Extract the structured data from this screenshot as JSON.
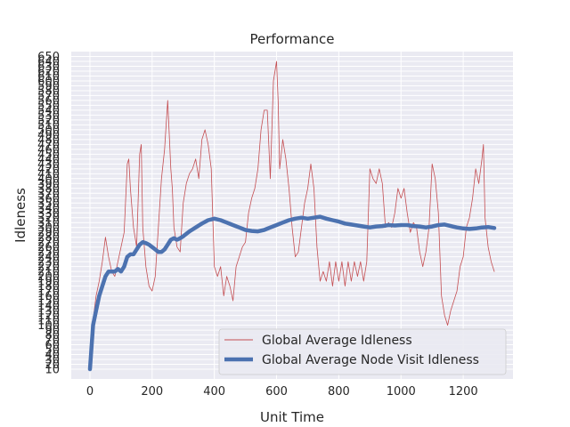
{
  "chart_data": {
    "type": "line",
    "title": "Performance",
    "xlabel": "Unit Time",
    "ylabel": "Idleness",
    "xlim": [
      -60,
      1360
    ],
    "ylim": [
      -10,
      660
    ],
    "xticks": [
      0,
      200,
      400,
      600,
      800,
      1000,
      1200
    ],
    "yticks": [
      10,
      20,
      30,
      40,
      50,
      60,
      70,
      80,
      90,
      100,
      110,
      120,
      130,
      140,
      150,
      160,
      170,
      180,
      190,
      200,
      210,
      220,
      230,
      240,
      250,
      260,
      270,
      280,
      290,
      300,
      310,
      320,
      330,
      340,
      350,
      360,
      370,
      380,
      390,
      400,
      410,
      420,
      430,
      440,
      450,
      460,
      470,
      480,
      490,
      500,
      510,
      520,
      530,
      540,
      550,
      560,
      570,
      580,
      590,
      600,
      610,
      620,
      630,
      640,
      650
    ],
    "grid": true,
    "legend_position": "lower-right",
    "series": [
      {
        "name": "Global Average Idleness",
        "color": "#c44e52",
        "style": "thin",
        "x": [
          0,
          5,
          10,
          20,
          30,
          40,
          50,
          60,
          70,
          80,
          90,
          100,
          110,
          120,
          125,
          130,
          140,
          150,
          160,
          165,
          170,
          180,
          190,
          200,
          210,
          220,
          230,
          240,
          250,
          260,
          265,
          270,
          280,
          290,
          300,
          310,
          320,
          330,
          340,
          350,
          360,
          370,
          380,
          390,
          400,
          410,
          420,
          430,
          440,
          450,
          460,
          470,
          480,
          490,
          500,
          510,
          520,
          530,
          540,
          550,
          560,
          570,
          580,
          590,
          600,
          605,
          610,
          620,
          630,
          640,
          650,
          660,
          670,
          680,
          690,
          700,
          710,
          720,
          730,
          740,
          750,
          760,
          770,
          780,
          790,
          800,
          810,
          820,
          830,
          840,
          850,
          860,
          870,
          880,
          890,
          900,
          910,
          920,
          930,
          940,
          950,
          960,
          970,
          980,
          990,
          1000,
          1010,
          1020,
          1030,
          1040,
          1050,
          1060,
          1070,
          1080,
          1090,
          1100,
          1110,
          1120,
          1130,
          1140,
          1150,
          1160,
          1170,
          1180,
          1190,
          1200,
          1210,
          1220,
          1230,
          1240,
          1250,
          1260,
          1265,
          1270,
          1280,
          1290,
          1300
        ],
        "y": [
          10,
          60,
          110,
          160,
          190,
          230,
          280,
          240,
          210,
          200,
          230,
          260,
          290,
          430,
          440,
          380,
          300,
          260,
          450,
          470,
          300,
          220,
          180,
          170,
          200,
          300,
          400,
          460,
          560,
          420,
          380,
          300,
          260,
          250,
          350,
          390,
          410,
          420,
          440,
          400,
          480,
          500,
          470,
          420,
          220,
          200,
          220,
          160,
          200,
          180,
          150,
          220,
          240,
          260,
          270,
          330,
          360,
          380,
          420,
          500,
          540,
          540,
          400,
          600,
          640,
          560,
          420,
          480,
          440,
          380,
          300,
          240,
          250,
          300,
          350,
          380,
          430,
          380,
          260,
          190,
          210,
          190,
          230,
          180,
          230,
          190,
          230,
          180,
          230,
          190,
          230,
          200,
          230,
          190,
          230,
          420,
          400,
          390,
          420,
          390,
          300,
          310,
          300,
          330,
          380,
          360,
          380,
          330,
          290,
          310,
          300,
          250,
          220,
          250,
          300,
          430,
          400,
          330,
          160,
          120,
          100,
          130,
          150,
          170,
          220,
          240,
          300,
          320,
          360,
          420,
          390,
          440,
          470,
          320,
          260,
          230,
          210
        ]
      },
      {
        "name": "Global Average Node Visit Idleness",
        "color": "#4c72b0",
        "style": "thick",
        "x": [
          0,
          10,
          20,
          30,
          40,
          50,
          60,
          70,
          80,
          90,
          100,
          110,
          120,
          130,
          140,
          150,
          160,
          170,
          180,
          190,
          200,
          210,
          220,
          230,
          240,
          250,
          260,
          270,
          280,
          290,
          300,
          320,
          340,
          360,
          380,
          400,
          420,
          440,
          460,
          480,
          500,
          520,
          540,
          560,
          580,
          600,
          620,
          640,
          660,
          680,
          700,
          720,
          740,
          760,
          780,
          800,
          820,
          840,
          860,
          880,
          900,
          920,
          940,
          960,
          980,
          1000,
          1020,
          1040,
          1060,
          1080,
          1100,
          1120,
          1140,
          1160,
          1180,
          1200,
          1220,
          1240,
          1260,
          1280,
          1300
        ],
        "y": [
          10,
          100,
          130,
          160,
          180,
          200,
          210,
          210,
          210,
          215,
          210,
          220,
          240,
          245,
          245,
          255,
          265,
          270,
          268,
          265,
          260,
          255,
          250,
          250,
          255,
          265,
          275,
          278,
          275,
          278,
          282,
          292,
          300,
          308,
          315,
          318,
          315,
          310,
          305,
          300,
          295,
          293,
          292,
          295,
          300,
          305,
          310,
          315,
          318,
          320,
          318,
          320,
          322,
          318,
          315,
          312,
          308,
          306,
          304,
          302,
          300,
          302,
          303,
          305,
          304,
          305,
          305,
          303,
          302,
          300,
          302,
          305,
          306,
          303,
          300,
          298,
          297,
          298,
          300,
          301,
          299
        ]
      }
    ]
  }
}
